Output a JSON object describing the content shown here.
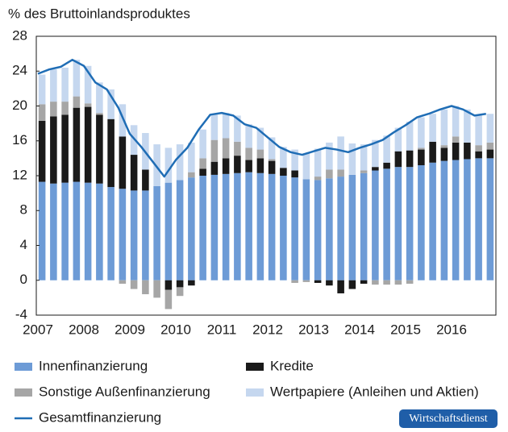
{
  "chart_data": {
    "type": "bar",
    "stacked": true,
    "ylabel": "% des Bruttoinlandsproduktes",
    "categories": [
      "2007",
      null,
      null,
      null,
      "2008",
      null,
      null,
      null,
      "2009",
      null,
      null,
      null,
      "2010",
      null,
      null,
      null,
      "2011",
      null,
      null,
      null,
      "2012",
      null,
      null,
      null,
      "2013",
      null,
      null,
      null,
      "2014",
      null,
      null,
      null,
      "2015",
      null,
      null,
      null,
      "2016",
      null,
      null,
      null
    ],
    "ylim": [
      -4,
      28
    ],
    "yticks": [
      -4,
      0,
      4,
      8,
      12,
      16,
      20,
      24,
      28
    ],
    "series": [
      {
        "name": "Innenfinanzierung",
        "color": "#6d9bd6",
        "values": [
          11.3,
          11.1,
          11.2,
          11.3,
          11.2,
          11.1,
          10.7,
          10.5,
          10.3,
          10.3,
          10.8,
          11.2,
          11.5,
          11.8,
          12.0,
          12.1,
          12.2,
          12.3,
          12.4,
          12.3,
          12.2,
          12.0,
          11.8,
          11.6,
          11.5,
          11.7,
          11.9,
          12.1,
          12.3,
          12.6,
          12.8,
          13.0,
          13.0,
          13.2,
          13.5,
          13.7,
          13.8,
          13.9,
          14.0,
          14.0
        ]
      },
      {
        "name": "Kredite",
        "color": "#1a1a1a",
        "values": [
          7.0,
          7.7,
          7.8,
          8.5,
          8.7,
          7.9,
          7.8,
          6.0,
          4.1,
          2.4,
          0,
          -1.1,
          -0.8,
          -0.6,
          0.8,
          1.5,
          1.8,
          2.0,
          1.4,
          1.7,
          1.5,
          0.9,
          0.8,
          0,
          -0.3,
          -0.6,
          -1.5,
          -1.0,
          -0.4,
          0.4,
          0.7,
          1.8,
          1.9,
          1.8,
          2.4,
          1.5,
          2.0,
          1.9,
          0.8,
          1.0
        ]
      },
      {
        "name": "Sonstige Außenfinanzierung",
        "color": "#a6a6a6",
        "values": [
          1.9,
          1.7,
          1.5,
          1.3,
          0.4,
          0.2,
          0,
          -0.4,
          -1.0,
          -1.6,
          -2.0,
          -2.2,
          -1.0,
          0.6,
          1.2,
          2.5,
          2.3,
          1.6,
          1.4,
          1.0,
          0.2,
          0,
          -0.3,
          -0.2,
          0.4,
          1.0,
          0.8,
          0,
          0.3,
          -0.5,
          -0.5,
          -0.5,
          -0.4,
          0.2,
          0,
          0.3,
          0.7,
          0,
          0.7,
          0.8
        ]
      },
      {
        "name": "Wertpapiere (Anleihen und Aktien)",
        "color": "#c5d7ef",
        "values": [
          3.4,
          3.7,
          3.9,
          4.2,
          4.3,
          3.5,
          3.4,
          3.7,
          3.4,
          4.2,
          4.8,
          4.0,
          4.1,
          3.4,
          3.3,
          2.9,
          2.9,
          3.0,
          2.7,
          2.5,
          2.5,
          2.4,
          2.4,
          3.0,
          3.2,
          3.1,
          3.8,
          3.6,
          3.0,
          3.1,
          3.1,
          2.7,
          3.3,
          3.5,
          3.2,
          4.1,
          3.5,
          3.8,
          3.4,
          3.3
        ]
      },
      {
        "name": "Gesamtfinanzierung",
        "type": "line",
        "color": "#1f6db5",
        "values": [
          23.7,
          24.2,
          24.5,
          25.3,
          24.6,
          22.7,
          21.9,
          19.8,
          16.8,
          15.3,
          13.6,
          11.9,
          13.8,
          15.2,
          17.3,
          19.0,
          19.2,
          18.9,
          17.9,
          17.5,
          16.4,
          15.3,
          14.7,
          14.4,
          14.8,
          15.2,
          15.0,
          14.7,
          15.2,
          15.6,
          16.1,
          17.0,
          17.8,
          18.7,
          19.1,
          19.6,
          20.0,
          19.6,
          18.9,
          19.1
        ]
      }
    ],
    "badge": "Wirtschaftsdienst"
  }
}
